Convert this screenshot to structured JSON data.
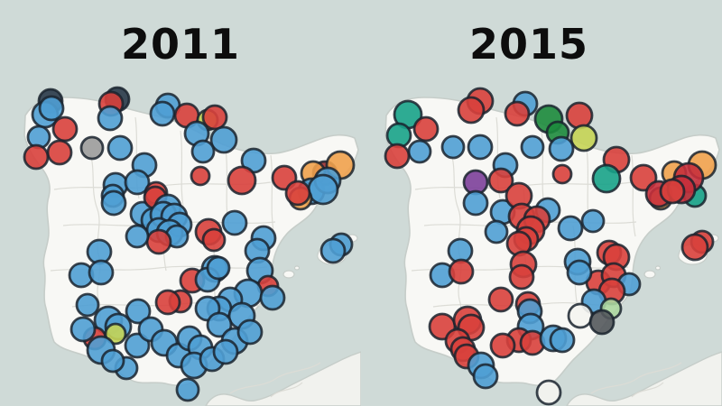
{
  "app": {
    "description": "Spain municipal election winners comparison maps",
    "sea_color": "#cfdad7",
    "land_color": "#f8f8f5",
    "coast_color": "#c6cdc9",
    "border_line_color": "#dcdcd6"
  },
  "palette": {
    "stroke": "#1a232e",
    "blue": "#4f9fd4",
    "red": "#d8403c",
    "crimson": "#c62f3b",
    "orange": "#efa14d",
    "gray": "#9b9b9b",
    "darkgray": "#53585c",
    "white": "#f4f4f1",
    "teal": "#17a288",
    "darkgreen": "#1d8b3d",
    "lime": "#c5d455",
    "lightgreen": "#abd6a0",
    "purple": "#7c3f9a",
    "maroon": "#9e2f2f",
    "navy": "#2a3a4a"
  },
  "maps": [
    {
      "title": "2011",
      "dots": [
        [
          56,
          112,
          13,
          "navy"
        ],
        [
          50,
          127,
          14,
          "blue"
        ],
        [
          57,
          120,
          13,
          "blue"
        ],
        [
          130,
          110,
          13,
          "navy"
        ],
        [
          123,
          115,
          13,
          "red"
        ],
        [
          122,
          131,
          13,
          "blue"
        ],
        [
          186,
          117,
          13,
          "blue"
        ],
        [
          180,
          126,
          13,
          "blue"
        ],
        [
          72,
          143,
          13,
          "red"
        ],
        [
          43,
          152,
          12,
          "blue"
        ],
        [
          66,
          169,
          13,
          "red"
        ],
        [
          40,
          174,
          13,
          "red"
        ],
        [
          102,
          164,
          12,
          "gray"
        ],
        [
          133,
          164,
          13,
          "blue"
        ],
        [
          160,
          183,
          13,
          "blue"
        ],
        [
          128,
          205,
          13,
          "blue"
        ],
        [
          152,
          202,
          13,
          "blue"
        ],
        [
          125,
          217,
          12,
          "blue"
        ],
        [
          173,
          214,
          12,
          "red"
        ],
        [
          207,
          128,
          13,
          "red"
        ],
        [
          230,
          133,
          11,
          "lime"
        ],
        [
          238,
          130,
          13,
          "red"
        ],
        [
          218,
          148,
          13,
          "blue"
        ],
        [
          248,
          155,
          14,
          "blue"
        ],
        [
          225,
          168,
          12,
          "blue"
        ],
        [
          281,
          178,
          13,
          "blue"
        ],
        [
          222,
          195,
          10,
          "red"
        ],
        [
          268,
          200,
          15,
          "red"
        ],
        [
          315,
          197,
          13,
          "red"
        ],
        [
          360,
          192,
          13,
          "maroon"
        ],
        [
          347,
          192,
          13,
          "orange"
        ],
        [
          377,
          183,
          15,
          "orange"
        ],
        [
          345,
          212,
          14,
          "blue"
        ],
        [
          363,
          200,
          14,
          "blue"
        ],
        [
          358,
          210,
          16,
          "blue"
        ],
        [
          333,
          220,
          12,
          "orange"
        ],
        [
          330,
          214,
          13,
          "red"
        ],
        [
          378,
          271,
          12,
          "blue"
        ],
        [
          369,
          278,
          13,
          "blue"
        ],
        [
          126,
          225,
          13,
          "blue"
        ],
        [
          158,
          237,
          13,
          "blue"
        ],
        [
          172,
          219,
          12,
          "red"
        ],
        [
          186,
          230,
          14,
          "blue"
        ],
        [
          170,
          244,
          13,
          "blue"
        ],
        [
          181,
          238,
          14,
          "blue"
        ],
        [
          193,
          240,
          14,
          "blue"
        ],
        [
          199,
          249,
          13,
          "blue"
        ],
        [
          176,
          255,
          13,
          "blue"
        ],
        [
          188,
          258,
          14,
          "blue"
        ],
        [
          196,
          262,
          12,
          "blue"
        ],
        [
          176,
          268,
          13,
          "red"
        ],
        [
          152,
          262,
          12,
          "blue"
        ],
        [
          231,
          257,
          14,
          "red"
        ],
        [
          260,
          247,
          13,
          "blue"
        ],
        [
          110,
          279,
          13,
          "blue"
        ],
        [
          90,
          305,
          13,
          "blue"
        ],
        [
          112,
          302,
          13,
          "blue"
        ],
        [
          238,
          298,
          14,
          "blue"
        ],
        [
          213,
          311,
          13,
          "red"
        ],
        [
          230,
          310,
          13,
          "blue"
        ],
        [
          237,
          266,
          12,
          "red"
        ],
        [
          292,
          264,
          13,
          "blue"
        ],
        [
          285,
          278,
          13,
          "blue"
        ],
        [
          242,
          297,
          12,
          "blue"
        ],
        [
          288,
          300,
          14,
          "blue"
        ],
        [
          297,
          317,
          11,
          "red"
        ],
        [
          275,
          325,
          15,
          "blue"
        ],
        [
          302,
          330,
          13,
          "blue"
        ],
        [
          255,
          332,
          13,
          "blue"
        ],
        [
          243,
          342,
          13,
          "blue"
        ],
        [
          268,
          350,
          14,
          "blue"
        ],
        [
          200,
          334,
          12,
          "red"
        ],
        [
          186,
          335,
          13,
          "red"
        ],
        [
          230,
          342,
          13,
          "blue"
        ],
        [
          243,
          360,
          13,
          "blue"
        ],
        [
          153,
          345,
          13,
          "blue"
        ],
        [
          97,
          338,
          12,
          "blue"
        ],
        [
          260,
          378,
          14,
          "blue"
        ],
        [
          277,
          368,
          13,
          "blue"
        ],
        [
          120,
          355,
          15,
          "blue"
        ],
        [
          131,
          362,
          14,
          "blue"
        ],
        [
          105,
          375,
          12,
          "red"
        ],
        [
          128,
          370,
          11,
          "lime"
        ],
        [
          92,
          365,
          13,
          "blue"
        ],
        [
          112,
          388,
          15,
          "blue"
        ],
        [
          152,
          383,
          13,
          "blue"
        ],
        [
          167,
          365,
          13,
          "blue"
        ],
        [
          182,
          380,
          14,
          "blue"
        ],
        [
          198,
          394,
          13,
          "blue"
        ],
        [
          210,
          375,
          13,
          "blue"
        ],
        [
          222,
          385,
          13,
          "blue"
        ],
        [
          215,
          405,
          14,
          "blue"
        ],
        [
          235,
          398,
          13,
          "blue"
        ],
        [
          250,
          390,
          13,
          "blue"
        ],
        [
          140,
          408,
          12,
          "blue"
        ],
        [
          125,
          400,
          12,
          "blue"
        ],
        [
          208,
          432,
          12,
          "blue"
        ]
      ]
    },
    {
      "title": "2015",
      "dots": [
        [
          52,
          127,
          15,
          "teal"
        ],
        [
          42,
          150,
          13,
          "teal"
        ],
        [
          132,
          112,
          14,
          "red"
        ],
        [
          122,
          122,
          14,
          "red"
        ],
        [
          182,
          115,
          13,
          "blue"
        ],
        [
          173,
          126,
          13,
          "red"
        ],
        [
          72,
          143,
          13,
          "red"
        ],
        [
          65,
          168,
          12,
          "blue"
        ],
        [
          40,
          173,
          13,
          "red"
        ],
        [
          102,
          163,
          12,
          "blue"
        ],
        [
          132,
          163,
          13,
          "blue"
        ],
        [
          160,
          183,
          13,
          "blue"
        ],
        [
          190,
          163,
          12,
          "blue"
        ],
        [
          155,
          200,
          13,
          "red"
        ],
        [
          127,
          202,
          13,
          "purple"
        ],
        [
          127,
          225,
          13,
          "blue"
        ],
        [
          208,
          132,
          15,
          "darkgreen"
        ],
        [
          218,
          147,
          12,
          "darkgreen"
        ],
        [
          242,
          128,
          14,
          "red"
        ],
        [
          247,
          153,
          14,
          "lime"
        ],
        [
          222,
          165,
          13,
          "blue"
        ],
        [
          223,
          193,
          10,
          "red"
        ],
        [
          283,
          177,
          14,
          "red"
        ],
        [
          272,
          198,
          15,
          "teal"
        ],
        [
          313,
          197,
          14,
          "red"
        ],
        [
          347,
          192,
          13,
          "orange"
        ],
        [
          378,
          183,
          15,
          "orange"
        ],
        [
          370,
          217,
          12,
          "teal"
        ],
        [
          332,
          220,
          12,
          "orange"
        ],
        [
          330,
          215,
          14,
          "crimson"
        ],
        [
          363,
          197,
          16,
          "crimson"
        ],
        [
          355,
          210,
          15,
          "crimson"
        ],
        [
          345,
          212,
          13,
          "red"
        ],
        [
          378,
          268,
          12,
          "red"
        ],
        [
          370,
          274,
          14,
          "red"
        ],
        [
          157,
          235,
          13,
          "blue"
        ],
        [
          175,
          217,
          14,
          "red"
        ],
        [
          207,
          233,
          13,
          "blue"
        ],
        [
          178,
          240,
          14,
          "red"
        ],
        [
          195,
          243,
          14,
          "red"
        ],
        [
          188,
          255,
          15,
          "red"
        ],
        [
          183,
          265,
          13,
          "red"
        ],
        [
          175,
          270,
          13,
          "red"
        ],
        [
          150,
          257,
          12,
          "blue"
        ],
        [
          232,
          253,
          13,
          "blue"
        ],
        [
          257,
          245,
          12,
          "blue"
        ],
        [
          110,
          278,
          13,
          "blue"
        ],
        [
          90,
          305,
          13,
          "blue"
        ],
        [
          111,
          301,
          13,
          "red"
        ],
        [
          180,
          293,
          14,
          "red"
        ],
        [
          178,
          307,
          13,
          "red"
        ],
        [
          240,
          290,
          14,
          "blue"
        ],
        [
          263,
          313,
          13,
          "red"
        ],
        [
          242,
          302,
          13,
          "blue"
        ],
        [
          275,
          280,
          13,
          "red"
        ],
        [
          283,
          285,
          14,
          "red"
        ],
        [
          280,
          305,
          13,
          "red"
        ],
        [
          297,
          315,
          12,
          "blue"
        ],
        [
          278,
          323,
          14,
          "red"
        ],
        [
          258,
          334,
          13,
          "blue"
        ],
        [
          243,
          350,
          13,
          "white"
        ],
        [
          277,
          342,
          11,
          "lightgreen"
        ],
        [
          267,
          357,
          13,
          "darkgray"
        ],
        [
          155,
          332,
          13,
          "red"
        ],
        [
          185,
          337,
          13,
          "red"
        ],
        [
          187,
          345,
          13,
          "blue"
        ],
        [
          188,
          362,
          14,
          "blue"
        ],
        [
          175,
          377,
          13,
          "red"
        ],
        [
          190,
          380,
          13,
          "red"
        ],
        [
          157,
          383,
          13,
          "red"
        ],
        [
          213,
          375,
          14,
          "blue"
        ],
        [
          223,
          377,
          13,
          "blue"
        ],
        [
          90,
          362,
          14,
          "red"
        ],
        [
          118,
          355,
          15,
          "red"
        ],
        [
          122,
          363,
          14,
          "red"
        ],
        [
          107,
          378,
          13,
          "red"
        ],
        [
          113,
          387,
          13,
          "red"
        ],
        [
          117,
          395,
          13,
          "red"
        ],
        [
          133,
          405,
          14,
          "blue"
        ],
        [
          138,
          417,
          13,
          "blue"
        ],
        [
          208,
          435,
          13,
          "white"
        ]
      ]
    }
  ]
}
